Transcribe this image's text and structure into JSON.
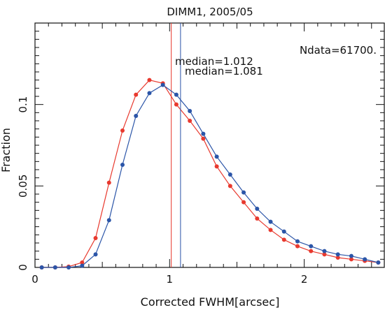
{
  "chart_data": {
    "type": "line",
    "title": "DIMM1, 2005/05",
    "xlabel": "Corrected FWHM[arcsec]",
    "ylabel": "Fraction",
    "xlim": [
      0,
      2.6
    ],
    "ylim": [
      0,
      0.15
    ],
    "x_ticks": [
      0,
      1,
      2
    ],
    "x_tick_labels": [
      "0",
      "1",
      "2"
    ],
    "y_ticks": [
      0,
      0.05,
      0.1
    ],
    "y_tick_labels": [
      "0",
      "0.05",
      "0.1"
    ],
    "grid": false,
    "annotation_ndata": "Ndata=61700.",
    "series": [
      {
        "name": "median=1.012",
        "color": "#e8392e",
        "median": 1.012,
        "x": [
          0.05,
          0.15,
          0.25,
          0.35,
          0.45,
          0.55,
          0.65,
          0.75,
          0.85,
          0.95,
          1.05,
          1.15,
          1.25,
          1.35,
          1.45,
          1.55,
          1.65,
          1.75,
          1.85,
          1.95,
          2.05,
          2.15,
          2.25,
          2.35,
          2.45,
          2.55
        ],
        "values": [
          0,
          0,
          0.0005,
          0.003,
          0.018,
          0.052,
          0.084,
          0.106,
          0.115,
          0.113,
          0.1,
          0.09,
          0.079,
          0.062,
          0.05,
          0.04,
          0.03,
          0.023,
          0.017,
          0.013,
          0.01,
          0.008,
          0.006,
          0.005,
          0.004,
          0.003
        ]
      },
      {
        "name": "median=1.081",
        "color": "#2b55a8",
        "median": 1.081,
        "x": [
          0.05,
          0.15,
          0.25,
          0.35,
          0.45,
          0.55,
          0.65,
          0.75,
          0.85,
          0.95,
          1.05,
          1.15,
          1.25,
          1.35,
          1.45,
          1.55,
          1.65,
          1.75,
          1.85,
          1.95,
          2.05,
          2.15,
          2.25,
          2.35,
          2.45,
          2.55
        ],
        "values": [
          0,
          0,
          0,
          0.001,
          0.008,
          0.029,
          0.063,
          0.093,
          0.107,
          0.112,
          0.106,
          0.096,
          0.082,
          0.068,
          0.057,
          0.046,
          0.036,
          0.028,
          0.022,
          0.016,
          0.013,
          0.01,
          0.008,
          0.007,
          0.005,
          0.003
        ]
      }
    ]
  }
}
